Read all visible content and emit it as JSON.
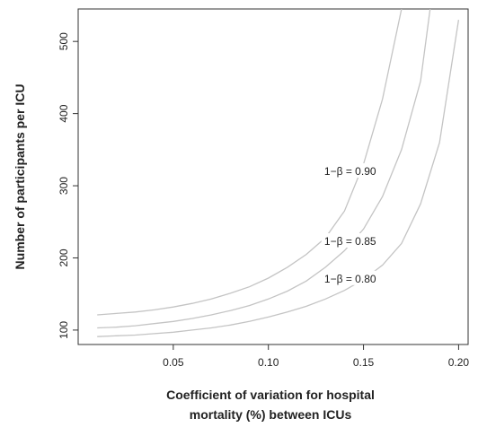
{
  "chart_data": {
    "type": "line",
    "xlabel_lines": [
      "Coefficient of variation for hospital",
      "mortality (%) between ICUs"
    ],
    "ylabel": "Number of participants per ICU",
    "xlim": [
      0.0,
      0.205
    ],
    "ylim": [
      80,
      545
    ],
    "xticks": [
      {
        "value": 0.05,
        "label": "0.05"
      },
      {
        "value": 0.1,
        "label": "0.10"
      },
      {
        "value": 0.15,
        "label": "0.15"
      },
      {
        "value": 0.2,
        "label": "0.20"
      }
    ],
    "yticks": [
      {
        "value": 100,
        "label": "100"
      },
      {
        "value": 200,
        "label": "200"
      },
      {
        "value": 300,
        "label": "300"
      },
      {
        "value": 400,
        "label": "400"
      },
      {
        "value": 500,
        "label": "500"
      }
    ],
    "line_color": "#c4c4c4",
    "series": [
      {
        "name": "1−β = 0.90",
        "label_at": [
          0.143,
          320
        ],
        "x": [
          0.01,
          0.02,
          0.03,
          0.04,
          0.05,
          0.06,
          0.07,
          0.08,
          0.09,
          0.1,
          0.11,
          0.12,
          0.13,
          0.14,
          0.15,
          0.16,
          0.17
        ],
        "y": [
          121,
          123,
          125,
          128,
          132,
          137,
          143,
          151,
          160,
          172,
          187,
          205,
          228,
          265,
          330,
          420,
          545
        ]
      },
      {
        "name": "1−β = 0.85",
        "label_at": [
          0.143,
          223
        ],
        "x": [
          0.01,
          0.02,
          0.03,
          0.04,
          0.05,
          0.06,
          0.07,
          0.08,
          0.09,
          0.1,
          0.11,
          0.12,
          0.13,
          0.14,
          0.15,
          0.16,
          0.17,
          0.18,
          0.185
        ],
        "y": [
          103,
          104,
          106,
          109,
          112,
          116,
          121,
          127,
          134,
          143,
          154,
          168,
          187,
          210,
          240,
          285,
          350,
          445,
          545
        ]
      },
      {
        "name": "1−β = 0.80",
        "label_at": [
          0.143,
          171
        ],
        "x": [
          0.01,
          0.02,
          0.03,
          0.04,
          0.05,
          0.06,
          0.07,
          0.08,
          0.09,
          0.1,
          0.11,
          0.12,
          0.13,
          0.14,
          0.15,
          0.16,
          0.17,
          0.18,
          0.19,
          0.2
        ],
        "y": [
          91,
          92,
          93,
          95,
          97,
          100,
          103,
          107,
          112,
          118,
          125,
          133,
          143,
          155,
          170,
          190,
          220,
          275,
          360,
          530
        ]
      }
    ]
  }
}
